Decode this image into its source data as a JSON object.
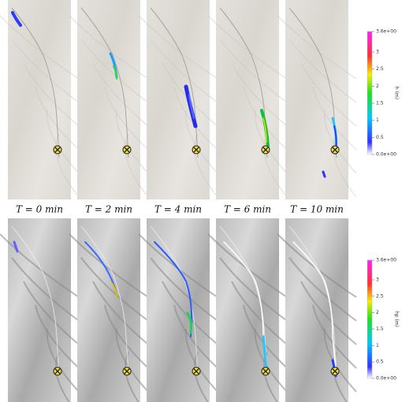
{
  "time_labels": [
    "T = 0 min",
    "T = 2 min",
    "T = 4 min",
    "T = 6 min",
    "T = 10 min"
  ],
  "colorbars": [
    {
      "title": "h (m)",
      "ticks": [
        {
          "value": 3.6,
          "label": "3.6e+00"
        },
        3,
        2.5,
        2,
        1.5,
        1,
        0.5,
        {
          "value": 0,
          "label": "0.0e+00"
        }
      ]
    },
    {
      "title": "hp (m)",
      "ticks": [
        {
          "value": 3.6,
          "label": "3.6e+00"
        },
        3,
        2.5,
        2,
        1.5,
        1,
        0.5,
        {
          "value": 0,
          "label": "0.0e+00"
        }
      ]
    }
  ]
}
